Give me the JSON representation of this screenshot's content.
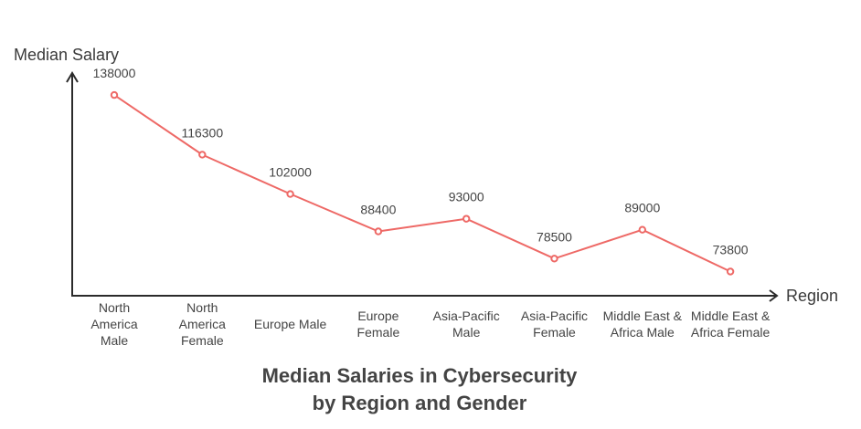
{
  "chart_data": {
    "type": "line",
    "title_lines": [
      "Median Salaries in Cybersecurity",
      "by Region and Gender"
    ],
    "xlabel": "Region",
    "ylabel": "Median Salary",
    "ylim": [
      65000,
      146000
    ],
    "categories": [
      [
        "North",
        "America",
        "Male"
      ],
      [
        "North",
        "America",
        "Female"
      ],
      [
        "Europe Male"
      ],
      [
        "Europe",
        "Female"
      ],
      [
        "Asia-Pacific",
        "Male"
      ],
      [
        "Asia-Pacific",
        "Female"
      ],
      [
        "Middle East &",
        "Africa Male"
      ],
      [
        "Middle East &",
        "Africa Female"
      ]
    ],
    "values": [
      138000,
      116300,
      102000,
      88400,
      93000,
      78500,
      89000,
      73800
    ],
    "value_labels": [
      "138000",
      "116300",
      "102000",
      "88400",
      "93000",
      "78500",
      "89000",
      "73800"
    ],
    "line_color": "#ee6966",
    "axis_color": "#2b2b2b"
  }
}
